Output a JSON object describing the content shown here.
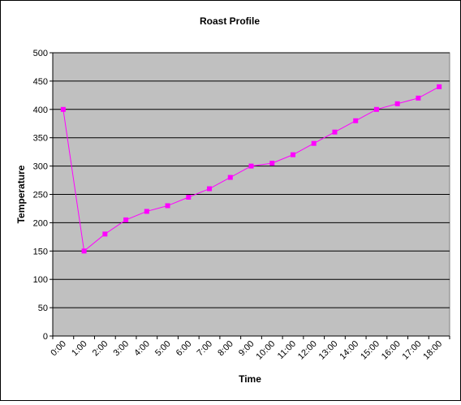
{
  "chart_data": {
    "type": "line",
    "title": "Roast Profile",
    "xlabel": "Time",
    "ylabel": "Temperature",
    "ylim": [
      0,
      500
    ],
    "yticks": [
      0,
      50,
      100,
      150,
      200,
      250,
      300,
      350,
      400,
      450,
      500
    ],
    "categories": [
      "0:00",
      "1:00",
      "2:00",
      "3:00",
      "4:00",
      "5:00",
      "6:00",
      "7:00",
      "8:00",
      "9:00",
      "10:00",
      "11:00",
      "12:00",
      "13:00",
      "14:00",
      "15:00",
      "16:00",
      "17:00",
      "18:00"
    ],
    "series": [
      {
        "values": [
          400,
          150,
          180,
          205,
          220,
          230,
          245,
          260,
          280,
          300,
          305,
          320,
          340,
          360,
          380,
          400,
          410,
          420,
          440
        ],
        "color": "#FF00FF"
      }
    ],
    "grid": "horizontal",
    "legend": "none",
    "plot_background": "#C0C0C0"
  }
}
